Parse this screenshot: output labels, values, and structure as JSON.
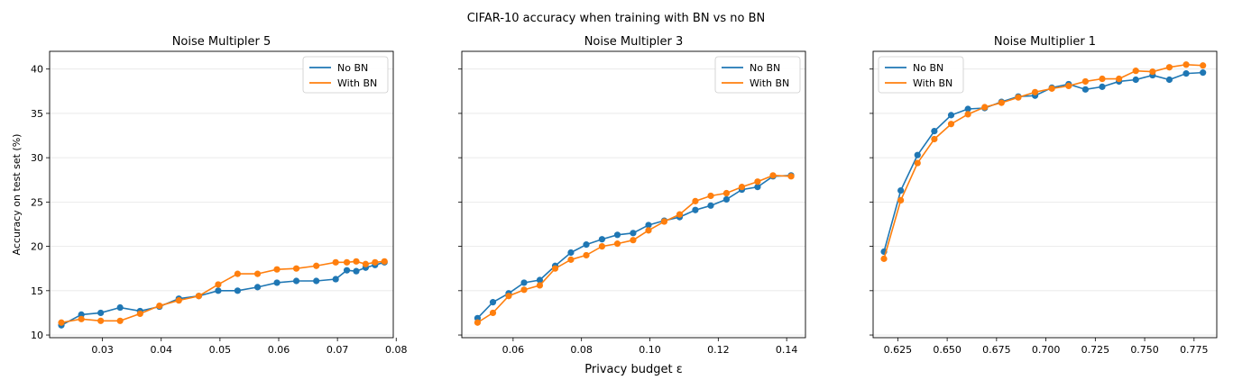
{
  "figure_title": "CIFAR-10 accuracy when training with BN vs no BN",
  "colors": {
    "no_bn": "#1f77b4",
    "with_bn": "#ff7f0e",
    "grid": "#e6e6e6"
  },
  "chart_data": [
    {
      "type": "line",
      "title": "Noise Multipler 5",
      "xlabel": "",
      "ylabel": "Accuracy on test set (%)",
      "xlim": [
        0.021,
        0.0795
      ],
      "ylim": [
        9.7,
        42.0
      ],
      "xticks": [
        0.03,
        0.04,
        0.05,
        0.06,
        0.07,
        0.08
      ],
      "xtick_labels": [
        "0.03",
        "0.04",
        "0.05",
        "0.06",
        "0.07",
        "0.08"
      ],
      "yticks": [
        10,
        15,
        20,
        25,
        30,
        35,
        40
      ],
      "ytick_labels": [
        "10",
        "15",
        "20",
        "25",
        "30",
        "35",
        "40"
      ],
      "grid": "horizontal",
      "legend": "top-right",
      "series": [
        {
          "name": "No BN",
          "color": "#1f77b4",
          "x": [
            0.023,
            0.0264,
            0.0297,
            0.033,
            0.0364,
            0.0397,
            0.043,
            0.0464,
            0.0497,
            0.053,
            0.0564,
            0.0597,
            0.063,
            0.0664,
            0.0697,
            0.0716,
            0.0732,
            0.0748,
            0.0764,
            0.078
          ],
          "y": [
            11.1,
            12.3,
            12.5,
            13.1,
            12.7,
            13.2,
            14.1,
            14.4,
            15.0,
            15.0,
            15.4,
            15.9,
            16.1,
            16.1,
            16.3,
            17.3,
            17.2,
            17.6,
            17.9,
            18.2
          ]
        },
        {
          "name": "With BN",
          "color": "#ff7f0e",
          "x": [
            0.023,
            0.0264,
            0.0297,
            0.033,
            0.0364,
            0.0397,
            0.043,
            0.0464,
            0.0497,
            0.053,
            0.0564,
            0.0597,
            0.063,
            0.0664,
            0.0697,
            0.0716,
            0.0732,
            0.0748,
            0.0764,
            0.078
          ],
          "y": [
            11.4,
            11.8,
            11.6,
            11.6,
            12.4,
            13.3,
            13.9,
            14.4,
            15.7,
            16.9,
            16.9,
            17.4,
            17.5,
            17.8,
            18.2,
            18.2,
            18.3,
            18.0,
            18.2,
            18.3
          ]
        }
      ]
    },
    {
      "type": "line",
      "title": "Noise Multipler 3",
      "xlabel": "Privacy budget ε",
      "ylabel": "",
      "xlim": [
        0.045,
        0.1455
      ],
      "ylim": [
        9.7,
        42.0
      ],
      "xticks": [
        0.06,
        0.08,
        0.1,
        0.12,
        0.14
      ],
      "xtick_labels": [
        "0.06",
        "0.08",
        "0.10",
        "0.12",
        "0.14"
      ],
      "yticks": [
        10,
        15,
        20,
        25,
        30,
        35,
        40
      ],
      "ytick_labels": [],
      "grid": "horizontal",
      "legend": "top-right",
      "series": [
        {
          "name": "No BN",
          "color": "#1f77b4",
          "x": [
            0.0496,
            0.0541,
            0.0587,
            0.0632,
            0.0678,
            0.0723,
            0.0769,
            0.0814,
            0.086,
            0.0905,
            0.0951,
            0.0996,
            0.1042,
            0.1087,
            0.1133,
            0.1178,
            0.1224,
            0.1269,
            0.1315,
            0.136,
            0.1413
          ],
          "y": [
            11.9,
            13.7,
            14.7,
            15.9,
            16.2,
            17.8,
            19.3,
            20.2,
            20.8,
            21.3,
            21.5,
            22.4,
            22.9,
            23.3,
            24.1,
            24.6,
            25.3,
            26.4,
            26.7,
            27.9,
            28.0
          ]
        },
        {
          "name": "With BN",
          "color": "#ff7f0e",
          "x": [
            0.0496,
            0.0541,
            0.0587,
            0.0632,
            0.0678,
            0.0723,
            0.0769,
            0.0814,
            0.086,
            0.0905,
            0.0951,
            0.0996,
            0.1042,
            0.1087,
            0.1133,
            0.1178,
            0.1224,
            0.1269,
            0.1315,
            0.136,
            0.1413
          ],
          "y": [
            11.4,
            12.5,
            14.4,
            15.1,
            15.6,
            17.5,
            18.5,
            19.0,
            20.0,
            20.3,
            20.7,
            21.8,
            22.8,
            23.6,
            25.1,
            25.7,
            26.0,
            26.7,
            27.3,
            28.0,
            27.9
          ]
        }
      ]
    },
    {
      "type": "line",
      "title": "Noise Multiplier 1",
      "xlabel": "",
      "ylabel": "",
      "xlim": [
        0.6125,
        0.7865
      ],
      "ylim": [
        9.7,
        42.0
      ],
      "xticks": [
        0.625,
        0.65,
        0.675,
        0.7,
        0.725,
        0.75,
        0.775
      ],
      "xtick_labels": [
        "0.625",
        "0.650",
        "0.675",
        "0.700",
        "0.725",
        "0.750",
        "0.775"
      ],
      "yticks": [
        10,
        15,
        20,
        25,
        30,
        35,
        40
      ],
      "ytick_labels": [],
      "grid": "horizontal",
      "legend": "top-left",
      "series": [
        {
          "name": "No BN",
          "color": "#1f77b4",
          "x": [
            0.618,
            0.6265,
            0.635,
            0.6435,
            0.652,
            0.6605,
            0.669,
            0.6775,
            0.686,
            0.6945,
            0.703,
            0.7115,
            0.72,
            0.7285,
            0.737,
            0.7455,
            0.754,
            0.7625,
            0.771,
            0.7795
          ],
          "y": [
            19.4,
            26.3,
            30.3,
            33.0,
            34.8,
            35.5,
            35.6,
            36.3,
            36.9,
            37.0,
            37.9,
            38.3,
            37.7,
            38.0,
            38.6,
            38.8,
            39.3,
            38.8,
            39.5,
            39.6
          ]
        },
        {
          "name": "With BN",
          "color": "#ff7f0e",
          "x": [
            0.618,
            0.6265,
            0.635,
            0.6435,
            0.652,
            0.6605,
            0.669,
            0.6775,
            0.686,
            0.6945,
            0.703,
            0.7115,
            0.72,
            0.7285,
            0.737,
            0.7455,
            0.754,
            0.7625,
            0.771,
            0.7795
          ],
          "y": [
            18.6,
            25.2,
            29.4,
            32.1,
            33.8,
            34.9,
            35.7,
            36.2,
            36.8,
            37.4,
            37.8,
            38.1,
            38.6,
            38.9,
            38.9,
            39.8,
            39.7,
            40.2,
            40.5,
            40.4
          ]
        }
      ]
    }
  ]
}
